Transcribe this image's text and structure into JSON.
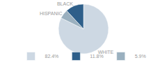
{
  "chart_data": {
    "type": "pie",
    "categories": [
      "WHITE",
      "BLACK",
      "HISPANIC"
    ],
    "values": [
      82.4,
      11.8,
      5.9
    ],
    "value_labels": [
      "82.4%",
      "11.8%",
      "5.9%"
    ],
    "colors": [
      "#cdd8e3",
      "#2e5f8a",
      "#9ab0bf"
    ],
    "legend": "bottom"
  }
}
